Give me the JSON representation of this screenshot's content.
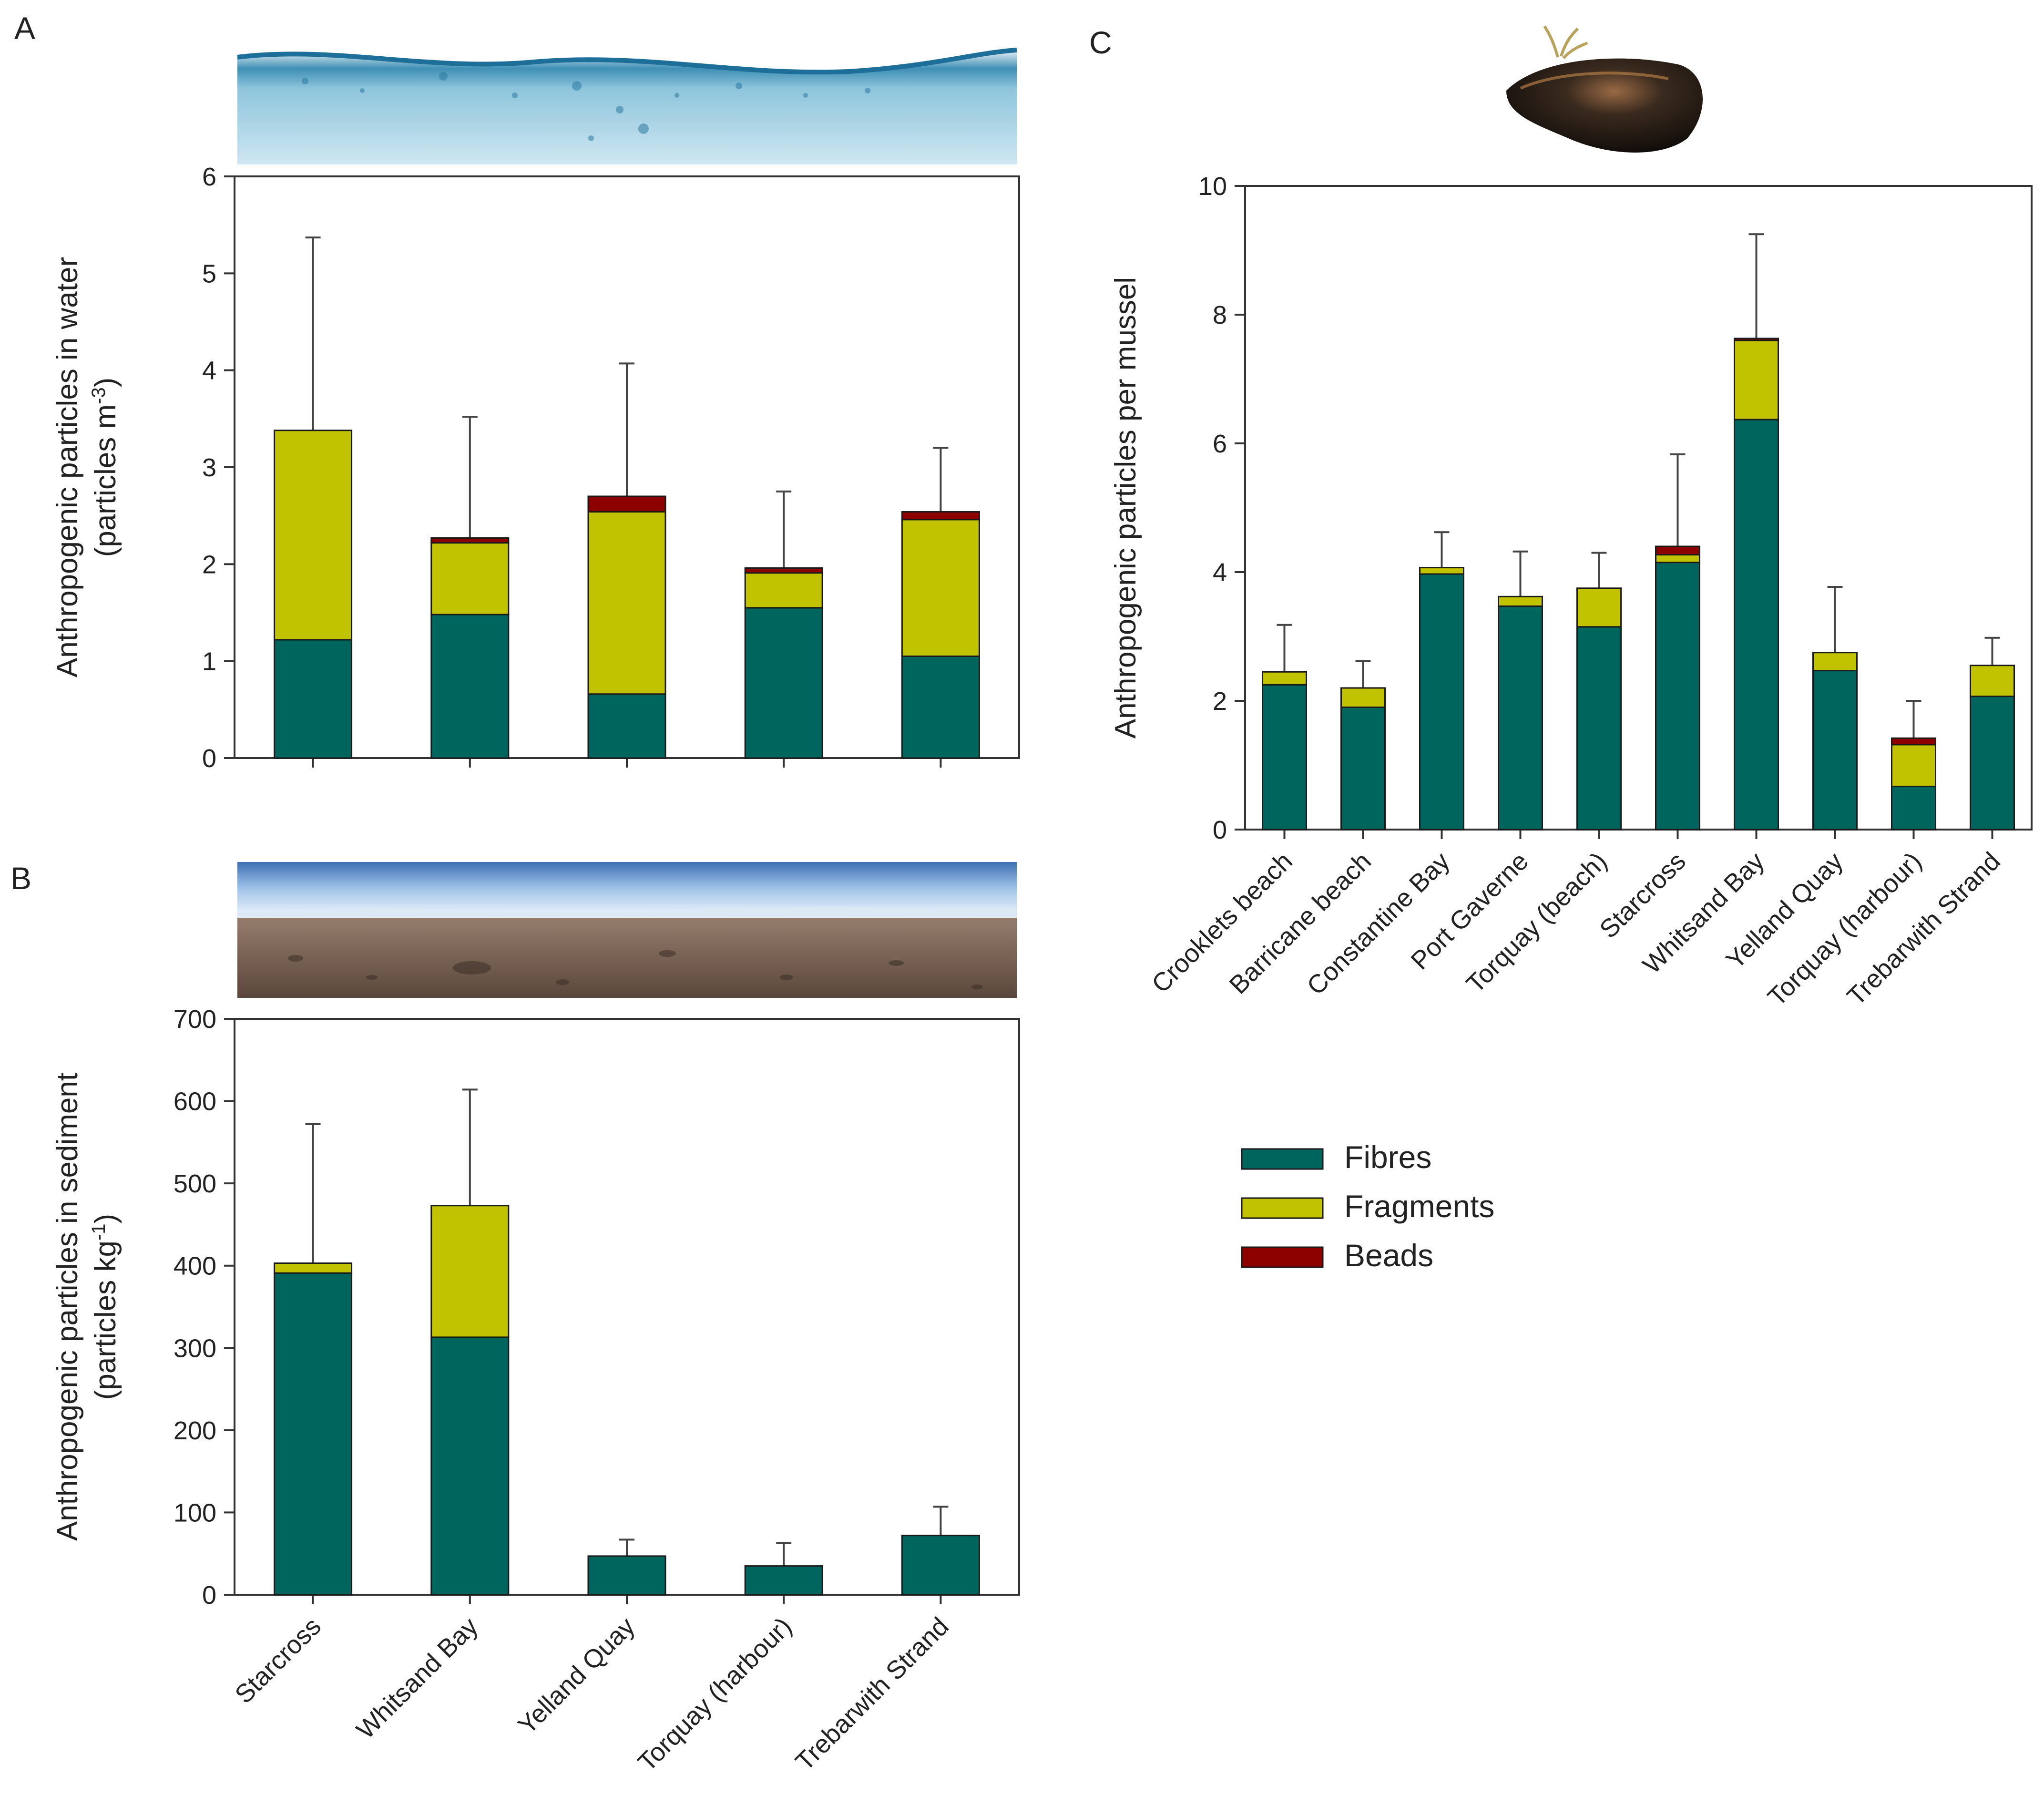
{
  "colors": {
    "fibres": "#00655d",
    "fragments": "#c2c300",
    "beads": "#8c0000",
    "axis": "#333333",
    "errorbar": "#444444"
  },
  "legend": {
    "items": [
      {
        "key": "fibres",
        "label": "Fibres"
      },
      {
        "key": "fragments",
        "label": "Fragments"
      },
      {
        "key": "beads",
        "label": "Beads"
      }
    ]
  },
  "chart_data": [
    {
      "panel": "A",
      "type": "bar",
      "stacked": true,
      "title": "",
      "ylabel_line1": "Anthropogenic particles in water",
      "ylabel_line2_base": "(particles m",
      "ylabel_line2_sup": "-3",
      "ylabel_line2_end": ")",
      "ylim": [
        0,
        6
      ],
      "yticks": [
        0,
        1,
        2,
        3,
        4,
        5,
        6
      ],
      "categories": [
        "Starcross",
        "Whitsand Bay",
        "Yelland Quay",
        "Torquay (harbour)",
        "Trebarwith Strand"
      ],
      "show_category_labels": false,
      "series": [
        {
          "name": "Fibres",
          "key": "fibres",
          "values": [
            1.22,
            1.48,
            0.66,
            1.55,
            1.05
          ]
        },
        {
          "name": "Fragments",
          "key": "fragments",
          "values": [
            2.16,
            0.74,
            1.88,
            0.36,
            1.41
          ]
        },
        {
          "name": "Beads",
          "key": "beads",
          "values": [
            0,
            0.05,
            0.16,
            0.05,
            0.08
          ]
        }
      ],
      "error_top": [
        5.37,
        3.52,
        4.07,
        2.75,
        3.2
      ]
    },
    {
      "panel": "B",
      "type": "bar",
      "stacked": true,
      "title": "",
      "ylabel_line1": "Anthropogenic particles in sediment",
      "ylabel_line2_base": "(particles kg",
      "ylabel_line2_sup": "-1",
      "ylabel_line2_end": ")",
      "ylim": [
        0,
        700
      ],
      "yticks": [
        0,
        100,
        200,
        300,
        400,
        500,
        600,
        700
      ],
      "categories": [
        "Starcross",
        "Whitsand Bay",
        "Yelland Quay",
        "Torquay (harbour)",
        "Trebarwith Strand"
      ],
      "show_category_labels": true,
      "series": [
        {
          "name": "Fibres",
          "key": "fibres",
          "values": [
            391,
            313,
            47,
            35,
            72
          ]
        },
        {
          "name": "Fragments",
          "key": "fragments",
          "values": [
            12,
            160,
            0,
            0,
            0
          ]
        },
        {
          "name": "Beads",
          "key": "beads",
          "values": [
            0,
            0,
            0,
            0,
            0
          ]
        }
      ],
      "error_top": [
        572,
        614,
        67,
        63,
        107
      ]
    },
    {
      "panel": "C",
      "type": "bar",
      "stacked": true,
      "title": "",
      "ylabel_line1": "Anthropogenic particles per mussel",
      "ylim": [
        0,
        10
      ],
      "yticks": [
        0,
        2,
        4,
        6,
        8,
        10
      ],
      "categories": [
        "Crooklets beach",
        "Barricane beach",
        "Constantine Bay",
        "Port Gaverne",
        "Torquay (beach)",
        "Starcross",
        "Whitsand Bay",
        "Yelland Quay",
        "Torquay (harbour)",
        "Trebarwith Strand"
      ],
      "show_category_labels": true,
      "series": [
        {
          "name": "Fibres",
          "key": "fibres",
          "values": [
            2.25,
            1.9,
            3.97,
            3.47,
            3.15,
            4.15,
            6.37,
            2.47,
            0.67,
            2.07
          ]
        },
        {
          "name": "Fragments",
          "key": "fragments",
          "values": [
            0.2,
            0.3,
            0.1,
            0.15,
            0.6,
            0.12,
            1.23,
            0.28,
            0.65,
            0.48
          ]
        },
        {
          "name": "Beads",
          "key": "beads",
          "values": [
            0,
            0,
            0,
            0,
            0,
            0.13,
            0.03,
            0,
            0.1,
            0
          ]
        }
      ],
      "error_top": [
        3.18,
        2.62,
        4.62,
        4.32,
        4.3,
        5.83,
        9.25,
        3.77,
        2.0,
        2.98
      ]
    }
  ],
  "panels": {
    "a_letter": "A",
    "b_letter": "B",
    "c_letter": "C"
  },
  "images": {
    "water": "water-surface-photo",
    "sediment": "beach-sediment-photo",
    "mussel": "mussel-photo"
  }
}
